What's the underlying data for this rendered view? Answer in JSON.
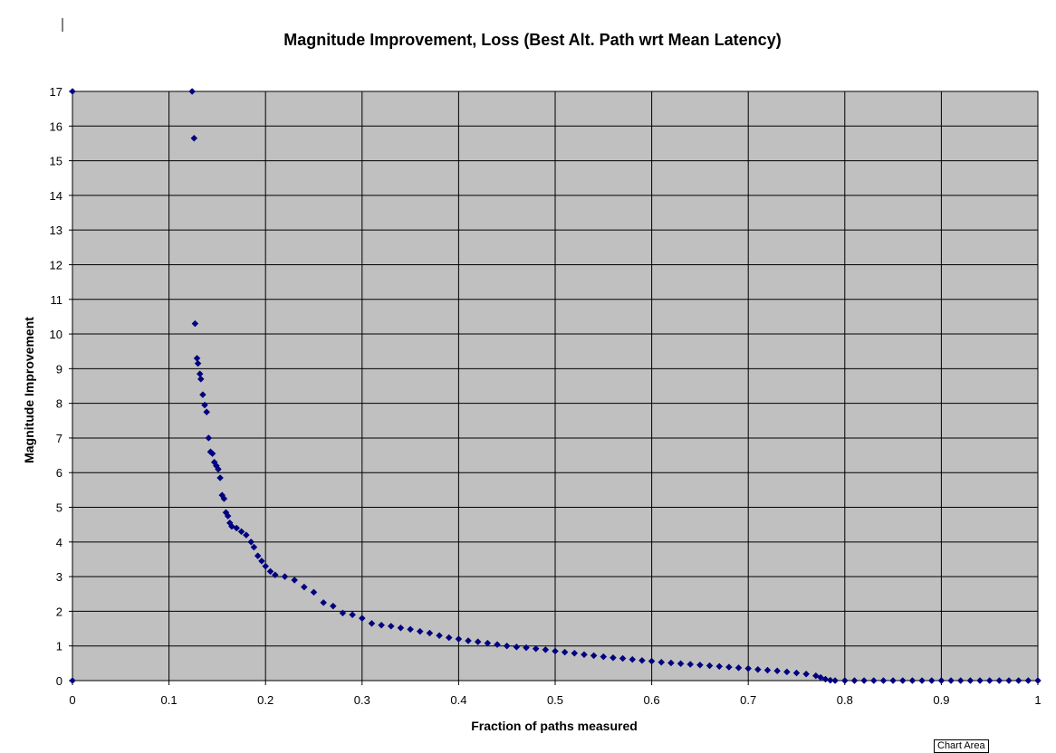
{
  "chart_data": {
    "type": "scatter",
    "title": "Magnitude Improvement, Loss (Best Alt. Path wrt Mean Latency)",
    "xlabel": "Fraction of paths measured",
    "ylabel": "Magnitude Improvement",
    "xlim": [
      0,
      1
    ],
    "ylim": [
      0,
      17
    ],
    "x_ticks": [
      "0",
      "0.1",
      "0.2",
      "0.3",
      "0.4",
      "0.5",
      "0.6",
      "0.7",
      "0.8",
      "0.9",
      "1"
    ],
    "y_ticks": [
      "0",
      "1",
      "2",
      "3",
      "4",
      "5",
      "6",
      "7",
      "8",
      "9",
      "10",
      "11",
      "12",
      "13",
      "14",
      "15",
      "16",
      "17"
    ],
    "grid": true,
    "legend": "none",
    "plot_background": "#c0c0c0",
    "marker_color": "#000080",
    "marker": "diamond",
    "series": [
      {
        "points": [
          [
            0,
            17
          ],
          [
            0,
            0
          ],
          [
            0.124,
            17
          ],
          [
            0.126,
            15.65
          ],
          [
            0.127,
            10.3
          ],
          [
            0.129,
            9.3
          ],
          [
            0.13,
            9.15
          ],
          [
            0.132,
            8.85
          ],
          [
            0.133,
            8.7
          ],
          [
            0.135,
            8.25
          ],
          [
            0.137,
            7.95
          ],
          [
            0.139,
            7.75
          ],
          [
            0.141,
            7.0
          ],
          [
            0.143,
            6.6
          ],
          [
            0.145,
            6.55
          ],
          [
            0.147,
            6.3
          ],
          [
            0.149,
            6.2
          ],
          [
            0.151,
            6.1
          ],
          [
            0.153,
            5.85
          ],
          [
            0.155,
            5.35
          ],
          [
            0.157,
            5.25
          ],
          [
            0.159,
            4.85
          ],
          [
            0.161,
            4.75
          ],
          [
            0.163,
            4.55
          ],
          [
            0.165,
            4.45
          ],
          [
            0.17,
            4.4
          ],
          [
            0.175,
            4.3
          ],
          [
            0.18,
            4.2
          ],
          [
            0.185,
            4.0
          ],
          [
            0.188,
            3.85
          ],
          [
            0.192,
            3.6
          ],
          [
            0.196,
            3.45
          ],
          [
            0.2,
            3.3
          ],
          [
            0.205,
            3.15
          ],
          [
            0.21,
            3.05
          ],
          [
            0.22,
            3.0
          ],
          [
            0.23,
            2.9
          ],
          [
            0.24,
            2.7
          ],
          [
            0.25,
            2.55
          ],
          [
            0.26,
            2.25
          ],
          [
            0.27,
            2.15
          ],
          [
            0.28,
            1.95
          ],
          [
            0.29,
            1.9
          ],
          [
            0.3,
            1.8
          ],
          [
            0.31,
            1.65
          ],
          [
            0.32,
            1.6
          ],
          [
            0.33,
            1.57
          ],
          [
            0.34,
            1.52
          ],
          [
            0.35,
            1.48
          ],
          [
            0.36,
            1.42
          ],
          [
            0.37,
            1.37
          ],
          [
            0.38,
            1.3
          ],
          [
            0.39,
            1.24
          ],
          [
            0.4,
            1.2
          ],
          [
            0.41,
            1.15
          ],
          [
            0.42,
            1.12
          ],
          [
            0.43,
            1.08
          ],
          [
            0.44,
            1.04
          ],
          [
            0.45,
            1.0
          ],
          [
            0.46,
            0.97
          ],
          [
            0.47,
            0.95
          ],
          [
            0.48,
            0.92
          ],
          [
            0.49,
            0.89
          ],
          [
            0.5,
            0.85
          ],
          [
            0.51,
            0.82
          ],
          [
            0.52,
            0.79
          ],
          [
            0.53,
            0.75
          ],
          [
            0.54,
            0.72
          ],
          [
            0.55,
            0.69
          ],
          [
            0.56,
            0.66
          ],
          [
            0.57,
            0.64
          ],
          [
            0.58,
            0.61
          ],
          [
            0.59,
            0.58
          ],
          [
            0.6,
            0.56
          ],
          [
            0.61,
            0.53
          ],
          [
            0.62,
            0.51
          ],
          [
            0.63,
            0.49
          ],
          [
            0.64,
            0.47
          ],
          [
            0.65,
            0.45
          ],
          [
            0.66,
            0.43
          ],
          [
            0.67,
            0.41
          ],
          [
            0.68,
            0.39
          ],
          [
            0.69,
            0.37
          ],
          [
            0.7,
            0.35
          ],
          [
            0.71,
            0.32
          ],
          [
            0.72,
            0.3
          ],
          [
            0.73,
            0.28
          ],
          [
            0.74,
            0.25
          ],
          [
            0.75,
            0.22
          ],
          [
            0.76,
            0.19
          ],
          [
            0.77,
            0.14
          ],
          [
            0.775,
            0.09
          ],
          [
            0.78,
            0.04
          ],
          [
            0.785,
            0.01
          ],
          [
            0.79,
            0.0
          ],
          [
            0.8,
            0.0
          ],
          [
            0.81,
            0.0
          ],
          [
            0.82,
            0.0
          ],
          [
            0.83,
            0.0
          ],
          [
            0.84,
            0.0
          ],
          [
            0.85,
            0.0
          ],
          [
            0.86,
            0.0
          ],
          [
            0.87,
            0.0
          ],
          [
            0.88,
            0.0
          ],
          [
            0.89,
            0.0
          ],
          [
            0.9,
            0.0
          ],
          [
            0.91,
            0.0
          ],
          [
            0.92,
            0.0
          ],
          [
            0.93,
            0.0
          ],
          [
            0.94,
            0.0
          ],
          [
            0.95,
            0.0
          ],
          [
            0.96,
            0.0
          ],
          [
            0.97,
            0.0
          ],
          [
            0.98,
            0.0
          ],
          [
            0.99,
            0.0
          ],
          [
            1.0,
            0.0
          ]
        ]
      }
    ]
  },
  "overlay": {
    "tooltip": "Chart Area"
  }
}
